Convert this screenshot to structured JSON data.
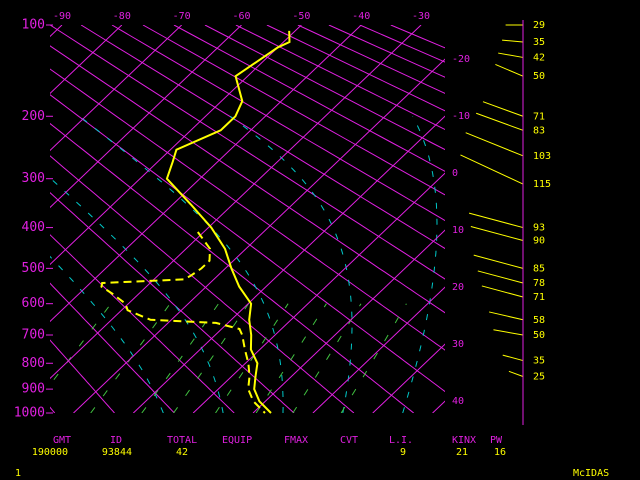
{
  "chart_data": {
    "type": "skew-t",
    "yscale": "exner",
    "ylim": [
      100,
      1000
    ],
    "yticks": [
      100,
      200,
      300,
      400,
      500,
      600,
      700,
      800,
      900,
      1000
    ],
    "xlim": [
      -92,
      -26
    ],
    "xticks": [
      -90,
      -80,
      -70,
      -60,
      -50,
      -40,
      -30
    ],
    "isotherm_labels": [
      -20,
      -10,
      0,
      10,
      20,
      30,
      40
    ],
    "grid_color": "#e020e0",
    "temperature": {
      "color": "#ffff00",
      "pressure": [
        105,
        115,
        120,
        150,
        180,
        200,
        220,
        250,
        270,
        300,
        350,
        400,
        450,
        500,
        550,
        600,
        650,
        700,
        750,
        800,
        850,
        900,
        950,
        1000
      ],
      "values": [
        -51,
        -49,
        -50,
        -52,
        -46.5,
        -45,
        -45,
        -49,
        -47.5,
        -45.5,
        -37,
        -29.5,
        -23.5,
        -19,
        -14.5,
        -9.5,
        -7,
        -4,
        -1.5,
        2,
        4,
        6,
        9,
        13
      ]
    },
    "dewpoint": {
      "color": "#ffff00",
      "dashed": true,
      "pressure": [
        410,
        450,
        480,
        500,
        520,
        530,
        540,
        550,
        570,
        600,
        620,
        650,
        660,
        680,
        700,
        750,
        800,
        850,
        900,
        950,
        1000
      ],
      "values": [
        -31,
        -26,
        -24,
        -24,
        -24.5,
        -25,
        -38,
        -37.5,
        -34.5,
        -30.5,
        -29,
        -23.5,
        -12,
        -7,
        -5.5,
        -2.5,
        0.5,
        3,
        5,
        8,
        12
      ]
    },
    "wind": {
      "color": "#ffff00",
      "pressure": [
        100,
        115,
        130,
        150,
        200,
        220,
        260,
        310,
        400,
        430,
        500,
        540,
        580,
        650,
        700,
        790,
        850
      ],
      "speed": [
        29,
        35,
        42,
        50,
        71,
        83,
        103,
        115,
        93,
        90,
        85,
        78,
        71,
        58,
        50,
        35,
        25
      ],
      "direction": [
        270,
        275,
        280,
        293,
        290,
        290,
        292,
        295,
        285,
        285,
        285,
        285,
        285,
        283,
        280,
        285,
        290
      ]
    }
  },
  "indices": [
    {
      "label": "GMT",
      "value": "190000"
    },
    {
      "label": "ID",
      "value": "93844"
    },
    {
      "label": "TOTAL",
      "value": 42
    },
    {
      "label": "EQUIP"
    },
    {
      "label": "FMAX"
    },
    {
      "label": "CVT"
    },
    {
      "label": "L.I.",
      "value": 9
    },
    {
      "label": "KINX",
      "value": 21
    },
    {
      "label": "PW",
      "value": 16
    }
  ],
  "footer": {
    "page": "1",
    "brand": "McIDAS"
  }
}
